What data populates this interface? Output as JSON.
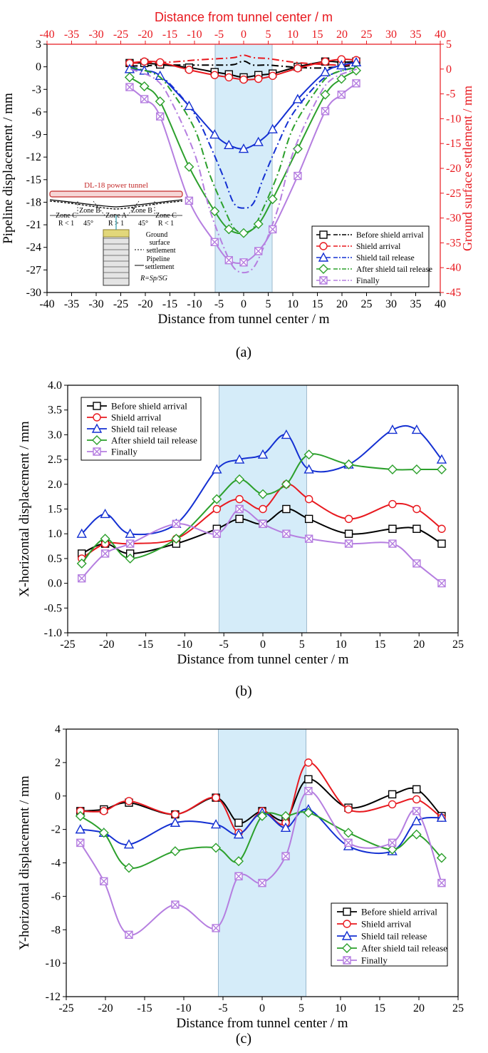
{
  "chart_data": [
    {
      "type": "line",
      "panel_label": "(a)",
      "title": "",
      "xlabel": "Distance from tunnel center / m",
      "top_xlabel": "Distance from tunnel center / m",
      "ylabel": "Pipeline displacement / mm",
      "y2label": "Ground surface settlement / mm",
      "xlim": [
        -40,
        40
      ],
      "ylim": [
        -30,
        3
      ],
      "y2lim": [
        -45,
        5
      ],
      "x_ticks": [
        "-40",
        "-35",
        "-30",
        "-25",
        "-20",
        "-15",
        "-10",
        "-5",
        "0",
        "5",
        "10",
        "15",
        "20",
        "25",
        "30",
        "35",
        "40"
      ],
      "y_ticks": [
        "3",
        "0",
        "-3",
        "-6",
        "-9",
        "-12",
        "-15",
        "-18",
        "-21",
        "-24",
        "-27",
        "-30"
      ],
      "y2_ticks": [
        "5",
        "0",
        "-5",
        "-10",
        "-15",
        "-20",
        "-25",
        "-30",
        "-35",
        "-40",
        "-45"
      ],
      "shaded_region": [
        -5.8,
        5.8
      ],
      "legend_position": "bottom-right",
      "colors": {
        "axis": "#000000",
        "secondary_axis": "#e8191f",
        "shade": "#d5ecf9"
      },
      "x": [
        -23.2,
        -20.2,
        -17,
        -11.1,
        -5.9,
        -3,
        0,
        3,
        5.9,
        11,
        16.6,
        19.9,
        22.9
      ],
      "series": [
        {
          "name": "Before shield arrival",
          "color": "#000000",
          "marker": "square",
          "pipeline": [
            0.5,
            0.5,
            0.3,
            -0.1,
            -0.7,
            -1.0,
            -1.4,
            -1.1,
            -0.9,
            0.0,
            0.7,
            0.6,
            0.7
          ],
          "ground_x": [
            -23,
            -15,
            -10,
            -5,
            -2,
            0,
            2,
            5,
            10,
            15,
            20,
            23
          ],
          "ground": [
            0.6,
            0.8,
            0.8,
            0.8,
            0.9,
            1.6,
            0.8,
            0.8,
            0.4,
            0.2,
            0.5,
            0.8
          ]
        },
        {
          "name": "Shield arrival",
          "color": "#e8191f",
          "marker": "circle",
          "pipeline": [
            0.5,
            0.7,
            0.6,
            -0.4,
            -1.1,
            -1.4,
            -1.7,
            -1.6,
            -1.2,
            -0.2,
            0.7,
            1.0,
            0.9
          ],
          "ground_x": [
            -23,
            -15,
            -10,
            -5,
            -2,
            0,
            2,
            5,
            10,
            15,
            20,
            23
          ],
          "ground": [
            1.2,
            1.4,
            1.8,
            2.1,
            2.3,
            2.8,
            2.3,
            2.1,
            1.4,
            1.0,
            0.8,
            1.2
          ]
        },
        {
          "name": "Shield tail release",
          "color": "#1430d2",
          "marker": "triangle",
          "pipeline": [
            -0.3,
            -0.5,
            -1.2,
            -5.2,
            -9.0,
            -10.4,
            -10.9,
            -10.0,
            -8.3,
            -4.3,
            -0.7,
            0.2,
            0.6
          ],
          "ground_x": [
            -23,
            -18,
            -15,
            -10,
            -7,
            -4,
            -2,
            0,
            2,
            4,
            7,
            10,
            15,
            18,
            23
          ],
          "ground": [
            0.5,
            -1.0,
            -3.0,
            -9.0,
            -15.0,
            -22.0,
            -27.0,
            -28.0,
            -27.0,
            -22.0,
            -15.0,
            -9.0,
            -3.0,
            -1.0,
            0.5
          ]
        },
        {
          "name": "After shield tail release",
          "color": "#2ca02c",
          "marker": "diamond",
          "pipeline": [
            -1.4,
            -2.6,
            -4.6,
            -13.3,
            -19.2,
            -21.6,
            -22.1,
            -20.9,
            -17.6,
            -10.9,
            -3.7,
            -1.6,
            -0.5
          ],
          "ground_x": [
            -23,
            -18,
            -15,
            -10,
            -7,
            -4,
            -2,
            0,
            2,
            4,
            7,
            10,
            15,
            18,
            23
          ],
          "ground": [
            0.3,
            -1.0,
            -4.0,
            -12.0,
            -21.0,
            -28.0,
            -32.0,
            -33.0,
            -32.0,
            -28.0,
            -21.0,
            -12.0,
            -4.0,
            -1.0,
            0.3
          ]
        },
        {
          "name": "Finally",
          "color": "#b57ee0",
          "marker": "crossbox",
          "pipeline": [
            -2.7,
            -4.3,
            -6.6,
            -17.8,
            -23.3,
            -25.7,
            -26.0,
            -24.5,
            -21.6,
            -14.5,
            -5.9,
            -3.7,
            -2.2
          ],
          "ground_x": [
            -23,
            -18,
            -15,
            -10,
            -7,
            -4,
            -2,
            0,
            2,
            4,
            7,
            10,
            15,
            18,
            23
          ],
          "ground": [
            0.0,
            -2.0,
            -6.0,
            -17.0,
            -28.0,
            -36.0,
            -40.0,
            -41.0,
            -40.0,
            -36.0,
            -28.0,
            -17.0,
            -6.0,
            -2.0,
            0.0
          ]
        }
      ],
      "inset": {
        "tunnel_label": "DL-18 power tunnel",
        "zone_c_left": "Zone C",
        "r_less_left": "R < 1",
        "zone_b_left": "Zone B",
        "angle_left": "45°",
        "zone_a": "Zone A",
        "r_greater": "R > 1",
        "zone_b_right": "Zone B",
        "angle_right": "45°",
        "zone_c_right": "Zone C",
        "r_less_right": "R < 1",
        "ground_legend_1": "Ground",
        "ground_legend_2": "surface",
        "ground_legend_3": "settlement",
        "pipeline_legend_1": "Pipeline",
        "pipeline_legend_2": "settlement",
        "ratio": "R=Sp/SG"
      }
    },
    {
      "type": "line",
      "panel_label": "(b)",
      "title": "",
      "xlabel": "Distance from tunnel center / m",
      "ylabel": "X-horizontal displacement / mm",
      "xlim": [
        -25,
        25
      ],
      "ylim": [
        -1.0,
        4.0
      ],
      "x_ticks": [
        "-25",
        "-20",
        "-15",
        "-10",
        "-5",
        "0",
        "5",
        "10",
        "15",
        "20",
        "25"
      ],
      "y_ticks": [
        "4.0",
        "3.5",
        "3.0",
        "2.5",
        "2.0",
        "1.5",
        "1.0",
        "0.5",
        "0.0",
        "-0.5",
        "-1.0"
      ],
      "shaded_region": [
        -5.6,
        5.6
      ],
      "legend_position": "top-left",
      "x": [
        -23.2,
        -20.2,
        -17,
        -11.1,
        -5.9,
        -3,
        0,
        3,
        5.9,
        11,
        16.6,
        19.7,
        22.9
      ],
      "series": [
        {
          "name": "Before shield arrival",
          "color": "#000000",
          "marker": "square",
          "values": [
            0.6,
            0.8,
            0.6,
            0.8,
            1.1,
            1.3,
            1.2,
            1.5,
            1.3,
            1.0,
            1.1,
            1.1,
            0.8
          ]
        },
        {
          "name": "Shield arrival",
          "color": "#e8191f",
          "marker": "circle",
          "values": [
            0.5,
            0.8,
            0.8,
            0.9,
            1.5,
            1.7,
            1.5,
            2.0,
            1.7,
            1.3,
            1.6,
            1.5,
            1.1
          ]
        },
        {
          "name": "Shield tail release",
          "color": "#1430d2",
          "marker": "triangle",
          "values": [
            1.0,
            1.4,
            1.0,
            1.2,
            2.3,
            2.5,
            2.6,
            3.0,
            2.3,
            2.4,
            3.1,
            3.1,
            2.5
          ]
        },
        {
          "name": "After shield tail release",
          "color": "#2ca02c",
          "marker": "diamond",
          "values": [
            0.4,
            0.9,
            0.5,
            0.9,
            1.7,
            2.1,
            1.8,
            2.0,
            2.6,
            2.4,
            2.3,
            2.3,
            2.3
          ]
        },
        {
          "name": "Finally",
          "color": "#b57ee0",
          "marker": "crossbox",
          "values": [
            0.1,
            0.6,
            0.8,
            1.2,
            1.0,
            1.5,
            1.2,
            1.0,
            0.9,
            0.8,
            0.8,
            0.4,
            0.0
          ]
        }
      ]
    },
    {
      "type": "line",
      "panel_label": "(c)",
      "title": "",
      "xlabel": "Distance from tunnel center / m",
      "ylabel": "Y-horizontal displacement / mm",
      "xlim": [
        -25,
        25
      ],
      "ylim": [
        -12,
        4
      ],
      "x_ticks": [
        "-25",
        "-20",
        "-15",
        "-10",
        "-5",
        "0",
        "5",
        "10",
        "15",
        "20",
        "25"
      ],
      "y_ticks": [
        "4",
        "2",
        "0",
        "-2",
        "-4",
        "-6",
        "-8",
        "-10",
        "-12"
      ],
      "shaded_region": [
        -5.6,
        5.6
      ],
      "legend_position": "bottom-right",
      "x": [
        -23.2,
        -20.2,
        -17,
        -11.1,
        -5.9,
        -3,
        0,
        3,
        5.9,
        11,
        16.6,
        19.7,
        22.9
      ],
      "series": [
        {
          "name": "Before shield arrival",
          "color": "#000000",
          "marker": "square",
          "values": [
            -0.9,
            -0.8,
            -0.4,
            -1.1,
            -0.1,
            -1.6,
            -0.9,
            -1.4,
            1.0,
            -0.7,
            0.1,
            0.4,
            -1.2
          ]
        },
        {
          "name": "Shield arrival",
          "color": "#e8191f",
          "marker": "circle",
          "values": [
            -0.9,
            -0.9,
            -0.3,
            -1.1,
            -0.1,
            -2.2,
            -0.9,
            -1.6,
            2.0,
            -0.8,
            -0.5,
            -0.2,
            -1.3
          ]
        },
        {
          "name": "Shield tail release",
          "color": "#1430d2",
          "marker": "triangle",
          "values": [
            -2.0,
            -2.2,
            -2.9,
            -1.6,
            -1.7,
            -2.3,
            -1.0,
            -1.9,
            -0.8,
            -3.0,
            -3.3,
            -1.5,
            -1.3
          ]
        },
        {
          "name": "After shield tail release",
          "color": "#2ca02c",
          "marker": "diamond",
          "values": [
            -1.2,
            -2.2,
            -4.3,
            -3.3,
            -3.1,
            -3.9,
            -1.2,
            -1.2,
            -1.0,
            -2.2,
            -3.2,
            -2.3,
            -3.7
          ]
        },
        {
          "name": "Finally",
          "color": "#b57ee0",
          "marker": "crossbox",
          "values": [
            -2.8,
            -5.1,
            -8.3,
            -6.5,
            -7.9,
            -4.8,
            -5.2,
            -3.6,
            0.3,
            -2.8,
            -2.8,
            -0.9,
            -5.2
          ]
        }
      ]
    }
  ]
}
